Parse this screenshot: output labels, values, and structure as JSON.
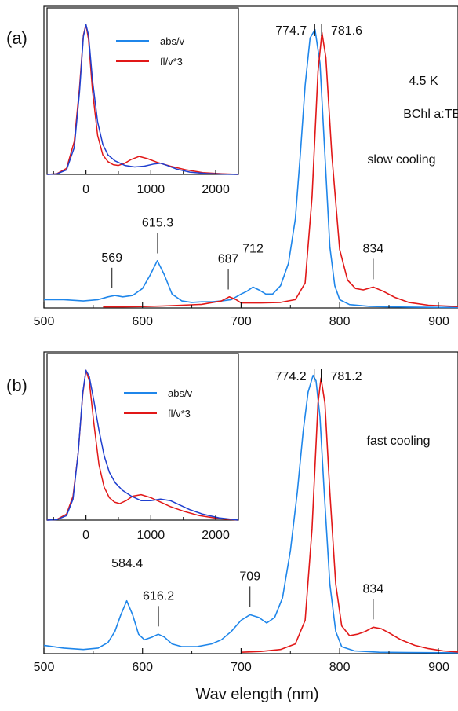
{
  "colors": {
    "absorption": "#1f86ea",
    "fluorescence": "#e11818",
    "axis": "#111111"
  },
  "figure": {
    "xlabel": "Wav elength (nm)"
  },
  "chart_data": [
    {
      "panel": "a",
      "panel_label": "(a)",
      "type": "line",
      "x_ticks": [
        "500",
        "600",
        "700",
        "800",
        "900"
      ],
      "xlim": [
        500,
        920
      ],
      "ylim": [
        0,
        1.05
      ],
      "texts": [
        {
          "key": "temperature",
          "text": "4.5 K"
        },
        {
          "key": "sample",
          "text": "BChl a:TEA"
        },
        {
          "key": "condition",
          "text": "slow cooling"
        }
      ],
      "peak_labels": [
        {
          "x": 569,
          "text": "569",
          "marker": true
        },
        {
          "x": 615.3,
          "text": "615.3",
          "marker": true
        },
        {
          "x": 687,
          "text": "687",
          "marker": true
        },
        {
          "x": 712,
          "text": "712",
          "marker": true
        },
        {
          "x": 834,
          "text": "834",
          "marker": true
        },
        {
          "x": 774.7,
          "text": "774.7",
          "marker": true,
          "top": true
        },
        {
          "x": 781.6,
          "text": "781.6",
          "marker": true,
          "top": true
        }
      ],
      "series": [
        {
          "name": "abs/v",
          "color": "#1f86ea",
          "x": [
            500,
            520,
            540,
            555,
            565,
            572,
            580,
            590,
            600,
            608,
            615,
            622,
            630,
            640,
            650,
            660,
            670,
            680,
            690,
            700,
            706,
            712,
            718,
            725,
            732,
            740,
            748,
            755,
            760,
            765,
            770,
            775,
            780,
            785,
            790,
            795,
            800,
            810,
            830,
            850,
            870,
            900,
            920
          ],
          "y": [
            0.03,
            0.03,
            0.025,
            0.03,
            0.04,
            0.045,
            0.04,
            0.045,
            0.07,
            0.12,
            0.17,
            0.12,
            0.05,
            0.025,
            0.02,
            0.022,
            0.022,
            0.025,
            0.03,
            0.05,
            0.06,
            0.075,
            0.065,
            0.05,
            0.05,
            0.08,
            0.16,
            0.32,
            0.55,
            0.8,
            0.97,
            1.0,
            0.88,
            0.55,
            0.22,
            0.08,
            0.03,
            0.012,
            0.006,
            0.004,
            0.003,
            0.002,
            0.002
          ]
        },
        {
          "name": "fl/v*3",
          "color": "#e11818",
          "x": [
            560,
            580,
            600,
            620,
            640,
            660,
            680,
            688,
            695,
            700,
            720,
            740,
            755,
            765,
            772,
            778,
            782,
            786,
            792,
            800,
            808,
            816,
            824,
            834,
            844,
            856,
            870,
            890,
            920
          ],
          "y": [
            0.004,
            0.004,
            0.005,
            0.007,
            0.01,
            0.013,
            0.025,
            0.04,
            0.03,
            0.018,
            0.018,
            0.02,
            0.03,
            0.09,
            0.4,
            0.85,
            0.99,
            0.9,
            0.55,
            0.21,
            0.1,
            0.07,
            0.065,
            0.075,
            0.06,
            0.038,
            0.02,
            0.01,
            0.005
          ]
        }
      ],
      "inset": {
        "x_ticks": [
          "0",
          "1000",
          "2000"
        ],
        "xlim": [
          -600,
          2350
        ],
        "ylim": [
          0,
          1.07
        ],
        "series": [
          {
            "name": "abs/v",
            "color": "#1f86ea",
            "x": [
              -600,
              -450,
              -300,
              -180,
              -100,
              -40,
              0,
              40,
              100,
              180,
              260,
              340,
              450,
              600,
              750,
              900,
              1050,
              1150,
              1250,
              1400,
              1600,
              1850,
              2100,
              2350
            ],
            "y": [
              0.0,
              0.003,
              0.03,
              0.18,
              0.55,
              0.92,
              1.0,
              0.93,
              0.63,
              0.35,
              0.2,
              0.13,
              0.09,
              0.06,
              0.05,
              0.055,
              0.07,
              0.075,
              0.06,
              0.035,
              0.015,
              0.006,
              0.002,
              0.0
            ]
          },
          {
            "name": "fl/v*3",
            "color": "#e11818",
            "x": [
              -600,
              -450,
              -300,
              -180,
              -100,
              -40,
              0,
              40,
              100,
              180,
              260,
              340,
              420,
              500,
              600,
              700,
              820,
              950,
              1100,
              1300,
              1550,
              1800,
              2100,
              2350
            ],
            "y": [
              0.0,
              0.004,
              0.04,
              0.22,
              0.58,
              0.93,
              1.0,
              0.9,
              0.56,
              0.26,
              0.13,
              0.085,
              0.065,
              0.06,
              0.075,
              0.1,
              0.12,
              0.105,
              0.08,
              0.055,
              0.03,
              0.012,
              0.004,
              0.0
            ]
          }
        ]
      }
    },
    {
      "panel": "b",
      "panel_label": "(b)",
      "type": "line",
      "x_ticks": [
        "500",
        "600",
        "700",
        "800",
        "900"
      ],
      "xlim": [
        500,
        920
      ],
      "ylim": [
        0,
        1.05
      ],
      "texts": [
        {
          "key": "condition",
          "text": "fast cooling"
        }
      ],
      "peak_labels": [
        {
          "x": 584.4,
          "text": "584.4",
          "marker": false
        },
        {
          "x": 616.2,
          "text": "616.2",
          "marker": true
        },
        {
          "x": 709,
          "text": "709",
          "marker": true
        },
        {
          "x": 834,
          "text": "834",
          "marker": true
        },
        {
          "x": 774.2,
          "text": "774.2",
          "marker": true,
          "top": true
        },
        {
          "x": 781.2,
          "text": "781.2",
          "marker": true,
          "top": true
        }
      ],
      "series": [
        {
          "name": "abs/v",
          "color": "#1f86ea",
          "x": [
            500,
            520,
            540,
            555,
            565,
            572,
            578,
            584,
            590,
            596,
            602,
            610,
            616,
            622,
            630,
            640,
            655,
            670,
            680,
            690,
            700,
            709,
            718,
            726,
            734,
            742,
            750,
            757,
            763,
            768,
            773,
            776,
            780,
            784,
            790,
            796,
            802,
            815,
            840,
            870,
            920
          ],
          "y": [
            0.03,
            0.02,
            0.015,
            0.02,
            0.04,
            0.08,
            0.14,
            0.19,
            0.14,
            0.07,
            0.05,
            0.06,
            0.07,
            0.06,
            0.035,
            0.025,
            0.025,
            0.035,
            0.05,
            0.08,
            0.12,
            0.14,
            0.13,
            0.11,
            0.13,
            0.2,
            0.37,
            0.58,
            0.8,
            0.94,
            1.0,
            0.98,
            0.85,
            0.6,
            0.25,
            0.08,
            0.025,
            0.01,
            0.005,
            0.004,
            0.003
          ]
        },
        {
          "name": "fl/v*3",
          "color": "#e11818",
          "x": [
            700,
            720,
            740,
            755,
            765,
            772,
            778,
            781,
            785,
            790,
            796,
            802,
            810,
            818,
            826,
            834,
            842,
            850,
            862,
            876,
            890,
            905,
            920
          ],
          "y": [
            0.005,
            0.008,
            0.015,
            0.035,
            0.12,
            0.45,
            0.9,
            0.99,
            0.9,
            0.58,
            0.25,
            0.1,
            0.065,
            0.07,
            0.08,
            0.095,
            0.09,
            0.075,
            0.05,
            0.03,
            0.018,
            0.01,
            0.006
          ]
        }
      ],
      "inset": {
        "x_ticks": [
          "0",
          "1000",
          "2000"
        ],
        "xlim": [
          -600,
          2350
        ],
        "ylim": [
          0,
          1.07
        ],
        "series": [
          {
            "name": "abs/v",
            "color": "#1f86ea",
            "x": [
              -600,
              -450,
              -300,
              -200,
              -120,
              -50,
              0,
              50,
              120,
              200,
              280,
              360,
              450,
              560,
              700,
              850,
              1000,
              1150,
              1300,
              1450,
              1600,
              1800,
              2050,
              2350
            ],
            "y": [
              0.0,
              0.003,
              0.03,
              0.14,
              0.45,
              0.85,
              1.0,
              0.96,
              0.8,
              0.6,
              0.43,
              0.32,
              0.25,
              0.2,
              0.16,
              0.13,
              0.13,
              0.14,
              0.13,
              0.1,
              0.07,
              0.04,
              0.015,
              0.0
            ]
          },
          {
            "name": "fl/v*3",
            "color": "#e11818",
            "x": [
              -600,
              -450,
              -300,
              -200,
              -120,
              -50,
              0,
              50,
              120,
              200,
              280,
              360,
              440,
              520,
              620,
              720,
              850,
              1000,
              1150,
              1300,
              1500,
              1750,
              2050,
              2350
            ],
            "y": [
              0.0,
              0.004,
              0.04,
              0.16,
              0.45,
              0.84,
              1.0,
              0.93,
              0.65,
              0.37,
              0.22,
              0.15,
              0.12,
              0.11,
              0.13,
              0.16,
              0.17,
              0.15,
              0.12,
              0.09,
              0.06,
              0.03,
              0.01,
              0.0
            ]
          }
        ]
      }
    }
  ]
}
